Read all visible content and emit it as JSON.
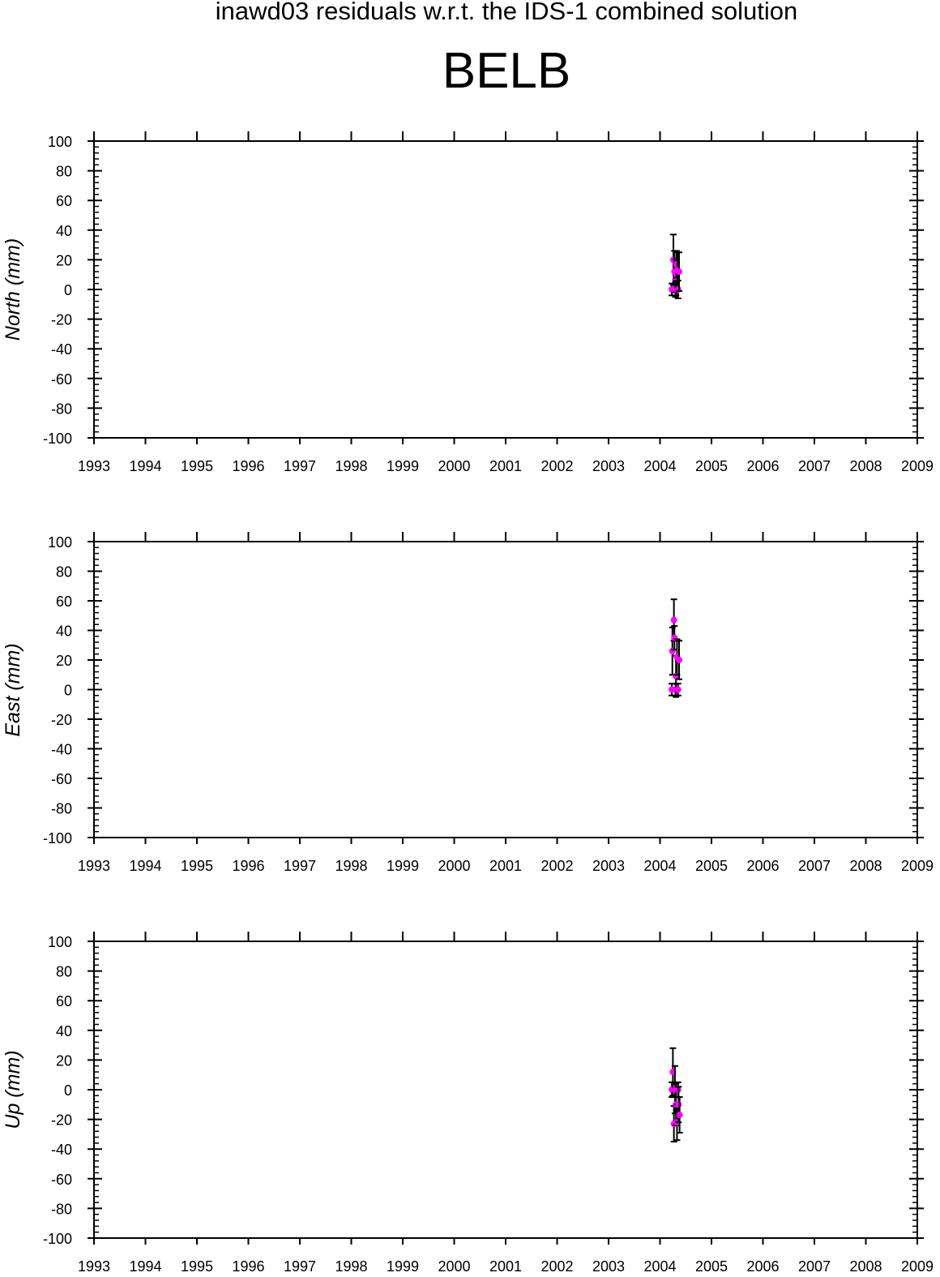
{
  "title": "inawd03 residuals w.r.t. the IDS-1 combined solution",
  "station": "BELB",
  "colors": {
    "marker": "#ff00ff",
    "errorbar": "#000000",
    "axis": "#000000"
  },
  "chart_data": [
    {
      "type": "scatter",
      "ylabel": "North (mm)",
      "xlim": [
        1993,
        2009
      ],
      "ylim": [
        -100,
        100
      ],
      "x_ticks": [
        "1993",
        "1994",
        "1995",
        "1996",
        "1997",
        "1998",
        "1999",
        "2000",
        "2001",
        "2002",
        "2003",
        "2004",
        "2005",
        "2006",
        "2007",
        "2008",
        "2009"
      ],
      "y_ticks": [
        "100",
        "80",
        "60",
        "40",
        "20",
        "0",
        "-20",
        "-40",
        "-60",
        "-80",
        "-100"
      ],
      "grid": false,
      "points": [
        {
          "x": 2004.23,
          "y": 0,
          "err": 4
        },
        {
          "x": 2004.26,
          "y": 20,
          "err": 17
        },
        {
          "x": 2004.28,
          "y": 12,
          "err": 14
        },
        {
          "x": 2004.3,
          "y": 0,
          "err": 5
        },
        {
          "x": 2004.31,
          "y": 8,
          "err": 12
        },
        {
          "x": 2004.32,
          "y": 17,
          "err": 9
        },
        {
          "x": 2004.34,
          "y": 13,
          "err": 12
        },
        {
          "x": 2004.35,
          "y": 0,
          "err": 6
        },
        {
          "x": 2004.37,
          "y": 12,
          "err": 13
        }
      ]
    },
    {
      "type": "scatter",
      "ylabel": "East (mm)",
      "xlim": [
        1993,
        2009
      ],
      "ylim": [
        -100,
        100
      ],
      "x_ticks": [
        "1993",
        "1994",
        "1995",
        "1996",
        "1997",
        "1998",
        "1999",
        "2000",
        "2001",
        "2002",
        "2003",
        "2004",
        "2005",
        "2006",
        "2007",
        "2008",
        "2009"
      ],
      "y_ticks": [
        "100",
        "80",
        "60",
        "40",
        "20",
        "0",
        "-20",
        "-40",
        "-60",
        "-80",
        "-100"
      ],
      "grid": false,
      "points": [
        {
          "x": 2004.23,
          "y": 0,
          "err": 4
        },
        {
          "x": 2004.24,
          "y": 26,
          "err": 16
        },
        {
          "x": 2004.27,
          "y": 47,
          "err": 14
        },
        {
          "x": 2004.28,
          "y": 35,
          "err": 8
        },
        {
          "x": 2004.3,
          "y": 0,
          "err": 4
        },
        {
          "x": 2004.31,
          "y": 9,
          "err": 14
        },
        {
          "x": 2004.33,
          "y": 22,
          "err": 12
        },
        {
          "x": 2004.35,
          "y": 0,
          "err": 4
        },
        {
          "x": 2004.37,
          "y": 20,
          "err": 13
        }
      ]
    },
    {
      "type": "scatter",
      "ylabel": "Up (mm)",
      "xlim": [
        1993,
        2009
      ],
      "ylim": [
        -100,
        100
      ],
      "x_ticks": [
        "1993",
        "1994",
        "1995",
        "1996",
        "1997",
        "1998",
        "1999",
        "2000",
        "2001",
        "2002",
        "2003",
        "2004",
        "2005",
        "2006",
        "2007",
        "2008",
        "2009"
      ],
      "y_ticks": [
        "100",
        "80",
        "60",
        "40",
        "20",
        "0",
        "-20",
        "-40",
        "-60",
        "-80",
        "-100"
      ],
      "grid": false,
      "points": [
        {
          "x": 2004.23,
          "y": 0,
          "err": 5
        },
        {
          "x": 2004.25,
          "y": 12,
          "err": 16
        },
        {
          "x": 2004.27,
          "y": -23,
          "err": 12
        },
        {
          "x": 2004.29,
          "y": 0,
          "err": 16
        },
        {
          "x": 2004.31,
          "y": -10,
          "err": 14
        },
        {
          "x": 2004.33,
          "y": -22,
          "err": 12
        },
        {
          "x": 2004.35,
          "y": 0,
          "err": 5
        },
        {
          "x": 2004.36,
          "y": -10,
          "err": 12
        },
        {
          "x": 2004.38,
          "y": -17,
          "err": 12
        }
      ]
    }
  ]
}
